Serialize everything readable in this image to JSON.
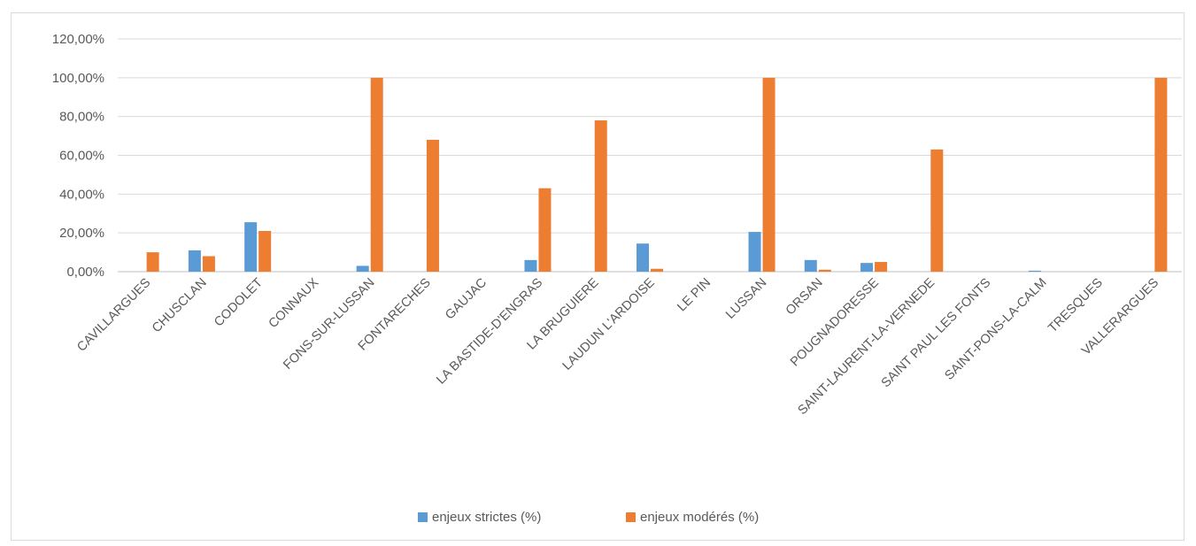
{
  "chart_data": {
    "type": "bar",
    "categories": [
      "CAVILLARGUES",
      "CHUSCLAN",
      "CODOLET",
      "CONNAUX",
      "FONS-SUR-LUSSAN",
      "FONTARECHES",
      "GAUJAC",
      "LA BASTIDE-D'ENGRAS",
      "LA BRUGUIERE",
      "LAUDUN L'ARDOISE",
      "LE PIN",
      "LUSSAN",
      "ORSAN",
      "POUGNADORESSE",
      "SAINT-LAURENT-LA-VERNEDE",
      "SAINT PAUL LES FONTS",
      "SAINT-PONS-LA-CALM",
      "TRESQUES",
      "VALLERARGUES"
    ],
    "series": [
      {
        "name": "enjeux strictes (%)",
        "color": "#5b9bd5",
        "values": [
          0,
          11,
          25.5,
          0,
          3,
          0,
          0,
          6,
          0,
          14.5,
          0,
          20.5,
          6,
          4.5,
          0,
          0,
          0.5,
          0,
          0
        ]
      },
      {
        "name": "enjeux modérés (%)",
        "color": "#ed7d31",
        "values": [
          10,
          8,
          21,
          0,
          100,
          68,
          0,
          43,
          78,
          1.5,
          0,
          100,
          1,
          5,
          63,
          0,
          0,
          0,
          100
        ]
      }
    ],
    "y_ticks": [
      "0,00%",
      "20,00%",
      "40,00%",
      "60,00%",
      "80,00%",
      "100,00%",
      "120,00%"
    ],
    "ylim": [
      0,
      120
    ],
    "grid": true,
    "legend": "bottom"
  }
}
